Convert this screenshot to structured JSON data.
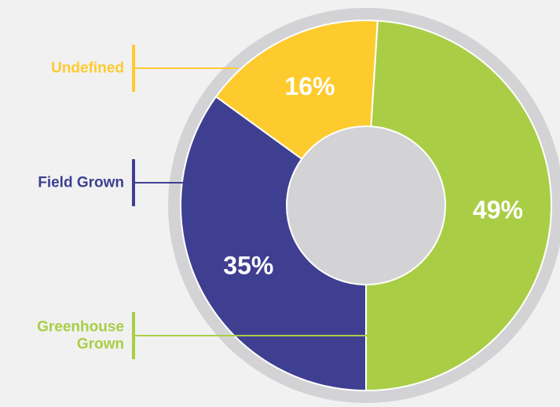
{
  "chart_data": {
    "type": "pie",
    "style": "donut",
    "title": "",
    "categories": [
      "Greenhouse Grown",
      "Field Grown",
      "Undefined"
    ],
    "values": [
      49,
      35,
      16
    ],
    "value_labels": [
      "49%",
      "35%",
      "16%"
    ],
    "colors": [
      "#a9ce46",
      "#3e3f91",
      "#fecb2f"
    ],
    "legend_labels": [
      [
        "Greenhouse",
        "Grown"
      ],
      [
        "Field Grown"
      ],
      [
        "Undefined"
      ]
    ],
    "legend_placement": "left"
  },
  "theme": {
    "background": "#f1f1f1",
    "outer_ring": "#d3d3d5",
    "hole": "#d3d3d5",
    "separator": "#ffffff"
  }
}
